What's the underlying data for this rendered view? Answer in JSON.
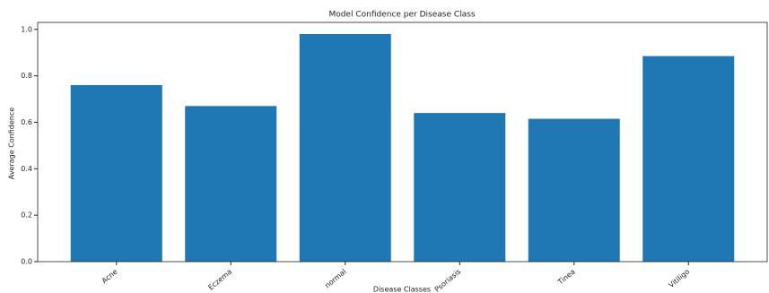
{
  "chart_data": {
    "type": "bar",
    "title": "Model Confidence per Disease Class",
    "x_label": "Disease Classes",
    "y_label": "Average Confidence",
    "categories": [
      "Acne",
      "Eczema",
      "normal",
      "Psoriasis",
      "Tinea",
      "Vitiligo"
    ],
    "values": [
      0.76,
      0.67,
      0.98,
      0.64,
      0.615,
      0.885
    ],
    "color": "#1f77b4",
    "ylim": [
      0,
      1.03
    ],
    "yticks": [
      {
        "value": 0,
        "label": "0.0"
      },
      0.2,
      0.4,
      0.6,
      0.8,
      {
        "value": 1,
        "label": "1.0"
      }
    ],
    "grid": false
  }
}
